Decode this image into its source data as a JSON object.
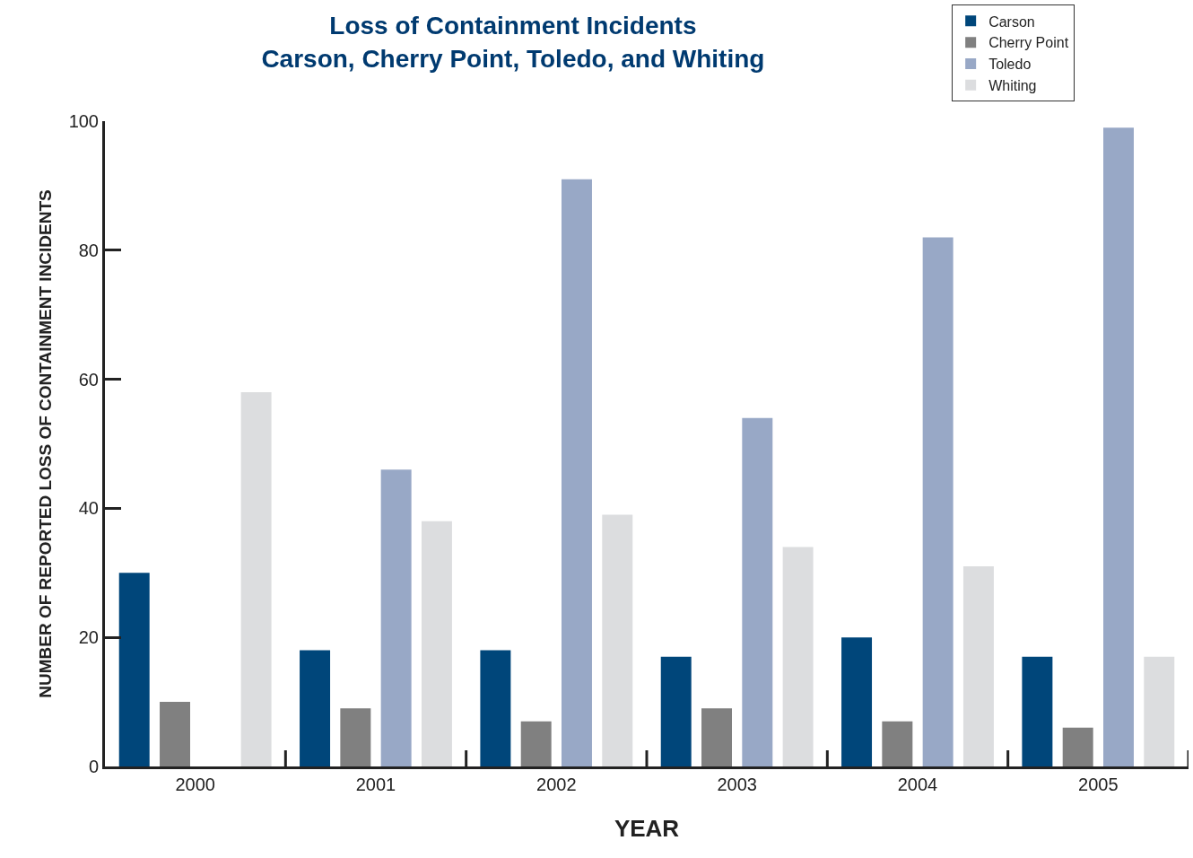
{
  "chart_data": {
    "type": "bar",
    "title": "Loss of Containment Incidents\nCarson, Cherry Point, Toledo, and Whiting",
    "xlabel": "YEAR",
    "ylabel": "NUMBER OF REPORTED LOSS OF CONTAINMENT INCIDENTS",
    "categories": [
      "2000",
      "2001",
      "2002",
      "2003",
      "2004",
      "2005"
    ],
    "series": [
      {
        "name": "Carson",
        "color": "#00467a",
        "values": [
          30,
          18,
          18,
          17,
          20,
          17
        ]
      },
      {
        "name": "Cherry Point",
        "color": "#808080",
        "values": [
          10,
          9,
          7,
          9,
          7,
          6
        ]
      },
      {
        "name": "Toledo",
        "color": "#98a8c6",
        "values": [
          0,
          46,
          91,
          54,
          82,
          99
        ]
      },
      {
        "name": "Whiting",
        "color": "#dcdddf",
        "values": [
          58,
          38,
          39,
          34,
          31,
          17
        ]
      }
    ],
    "ylim": [
      0,
      100
    ],
    "yticks": [
      0,
      20,
      40,
      60,
      80,
      100
    ],
    "grid": false,
    "legend": "top right"
  }
}
